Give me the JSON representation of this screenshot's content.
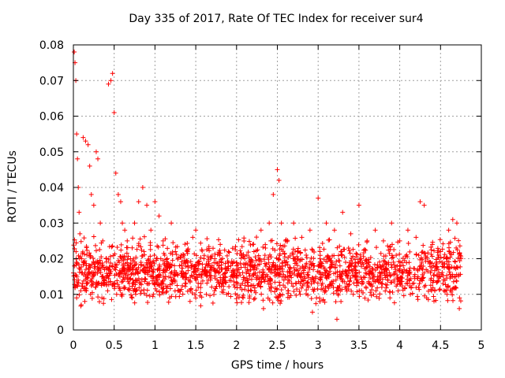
{
  "chart_data": {
    "type": "scatter",
    "title": "Day 335 of 2017, Rate Of TEC Index for receiver sur4",
    "xlabel": "GPS time / hours",
    "ylabel": "ROTI / TECUs",
    "xlim": [
      0,
      5
    ],
    "ylim": [
      0,
      0.08
    ],
    "xticks": [
      "0",
      "0.5",
      "1",
      "1.5",
      "2",
      "2.5",
      "3",
      "3.5",
      "4",
      "4.5",
      "5"
    ],
    "yticks": [
      "0",
      "0.01",
      "0.02",
      "0.03",
      "0.04",
      "0.05",
      "0.06",
      "0.07",
      "0.08"
    ],
    "grid": true,
    "marker": "+",
    "color": "#ff0000",
    "series": [
      {
        "name": "ROTI",
        "x": [
          0.0,
          0.01,
          0.02,
          0.03,
          0.04,
          0.05,
          0.06,
          0.07,
          0.08,
          0.1,
          0.12,
          0.15,
          0.18,
          0.2,
          0.22,
          0.25,
          0.28,
          0.3,
          0.33,
          0.36,
          0.4,
          0.43,
          0.46,
          0.48,
          0.5,
          0.52,
          0.55,
          0.58,
          0.6,
          0.63,
          0.66,
          0.7,
          0.75,
          0.8,
          0.85,
          0.9,
          0.95,
          1.0,
          1.05,
          1.1,
          1.15,
          1.2,
          1.25,
          1.3,
          1.35,
          1.4,
          1.5,
          1.6,
          1.7,
          1.8,
          1.9,
          2.0,
          2.1,
          2.2,
          2.3,
          2.4,
          2.45,
          2.5,
          2.52,
          2.55,
          2.6,
          2.7,
          2.8,
          2.9,
          3.0,
          3.1,
          3.2,
          3.3,
          3.4,
          3.5,
          3.6,
          3.7,
          3.8,
          3.9,
          4.0,
          4.1,
          4.2,
          4.25,
          4.3,
          4.4,
          4.5,
          4.6,
          4.65,
          4.7,
          4.75,
          0.02,
          0.04,
          0.06,
          0.09,
          0.11,
          0.14,
          0.16,
          0.19,
          0.21,
          0.24,
          0.27,
          0.31,
          0.35,
          0.38,
          0.42,
          0.45,
          0.49,
          0.53,
          0.57,
          0.62,
          0.67,
          0.72,
          0.78,
          0.83,
          0.88,
          0.93,
          0.98,
          1.03,
          1.08,
          1.13,
          1.18,
          1.23,
          1.28,
          1.33,
          1.38,
          1.43,
          1.48,
          1.53,
          1.58,
          1.63,
          1.68,
          1.73,
          1.78,
          1.83,
          1.88,
          1.93,
          1.98,
          2.03,
          2.08,
          2.13,
          2.18,
          2.23,
          2.28,
          2.33,
          2.38,
          2.43,
          2.48,
          2.53,
          2.58,
          2.63,
          2.68,
          2.73,
          2.78,
          2.83,
          2.88,
          2.93,
          2.98,
          3.03,
          3.08,
          3.13,
          3.18,
          3.23,
          3.28,
          3.33,
          3.38,
          3.43,
          3.48,
          3.53,
          3.58,
          3.63,
          3.68,
          3.73,
          3.78,
          3.83,
          3.88,
          3.93,
          3.98,
          4.03,
          4.08,
          4.13,
          4.18,
          4.23,
          4.28,
          4.33,
          4.38,
          4.43,
          4.48,
          4.53,
          4.58,
          4.63,
          4.68,
          4.73
        ],
        "y": [
          0.016,
          0.078,
          0.075,
          0.07,
          0.055,
          0.048,
          0.04,
          0.033,
          0.027,
          0.02,
          0.054,
          0.053,
          0.052,
          0.046,
          0.038,
          0.035,
          0.05,
          0.048,
          0.03,
          0.025,
          0.02,
          0.069,
          0.07,
          0.072,
          0.061,
          0.044,
          0.038,
          0.036,
          0.03,
          0.028,
          0.025,
          0.02,
          0.03,
          0.036,
          0.04,
          0.035,
          0.028,
          0.036,
          0.032,
          0.025,
          0.02,
          0.03,
          0.022,
          0.018,
          0.016,
          0.022,
          0.028,
          0.02,
          0.018,
          0.024,
          0.022,
          0.018,
          0.02,
          0.024,
          0.028,
          0.03,
          0.038,
          0.045,
          0.042,
          0.03,
          0.025,
          0.03,
          0.026,
          0.028,
          0.037,
          0.03,
          0.028,
          0.033,
          0.027,
          0.035,
          0.025,
          0.028,
          0.025,
          0.03,
          0.025,
          0.028,
          0.026,
          0.036,
          0.035,
          0.024,
          0.022,
          0.028,
          0.031,
          0.03,
          0.02,
          0.012,
          0.009,
          0.014,
          0.011,
          0.016,
          0.008,
          0.013,
          0.018,
          0.01,
          0.015,
          0.012,
          0.017,
          0.009,
          0.014,
          0.011,
          0.016,
          0.013,
          0.01,
          0.015,
          0.012,
          0.018,
          0.009,
          0.014,
          0.011,
          0.016,
          0.013,
          0.01,
          0.015,
          0.012,
          0.017,
          0.009,
          0.014,
          0.011,
          0.016,
          0.013,
          0.008,
          0.015,
          0.012,
          0.017,
          0.01,
          0.014,
          0.011,
          0.016,
          0.013,
          0.01,
          0.015,
          0.012,
          0.017,
          0.009,
          0.014,
          0.011,
          0.016,
          0.013,
          0.006,
          0.015,
          0.012,
          0.017,
          0.01,
          0.014,
          0.011,
          0.016,
          0.013,
          0.01,
          0.015,
          0.012,
          0.005,
          0.009,
          0.014,
          0.011,
          0.016,
          0.013,
          0.003,
          0.015,
          0.012,
          0.017,
          0.01,
          0.014,
          0.011,
          0.016,
          0.013,
          0.01,
          0.015,
          0.012,
          0.017,
          0.009,
          0.014,
          0.011,
          0.016,
          0.013,
          0.01,
          0.015,
          0.012,
          0.017,
          0.009,
          0.014,
          0.011,
          0.016,
          0.013,
          0.01,
          0.015,
          0.012,
          0.006
        ]
      }
    ],
    "density": {
      "description": "dense band of samples between 0.005 and 0.028 across 0 to 4.75 hours",
      "x_range": [
        0,
        4.75
      ],
      "y_range": [
        0.005,
        0.028
      ],
      "count": 1800
    }
  }
}
